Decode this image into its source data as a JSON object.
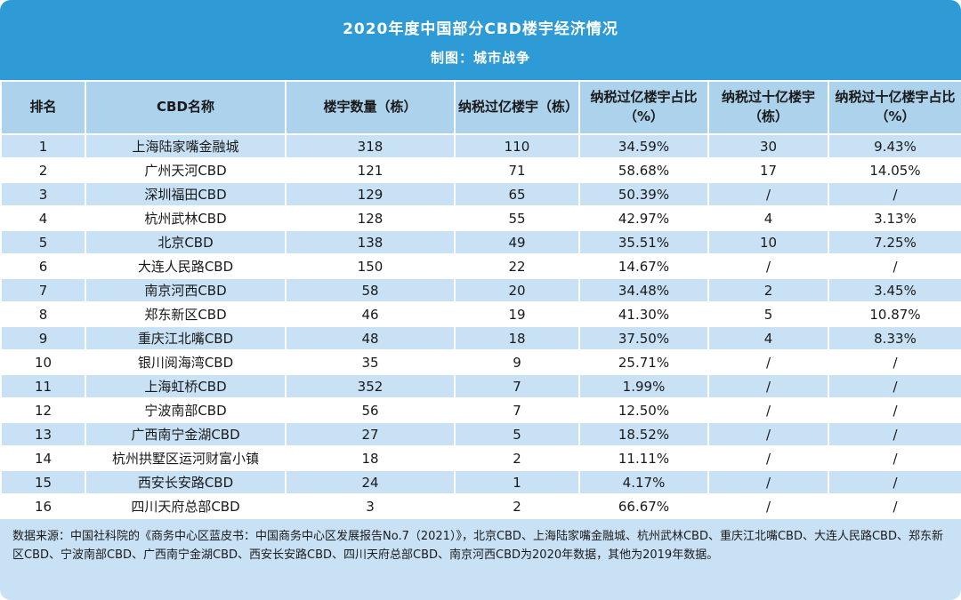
{
  "header": {
    "title": "2020年度中国部分CBD楼宇经济情况",
    "subtitle": "制图：城市战争"
  },
  "chart_data": {
    "type": "table",
    "title": "2020年度中国部分CBD楼宇经济情况",
    "subtitle": "制图：城市战争",
    "columns": [
      "排名",
      "CBD名称",
      "楼宇数量（栋）",
      "纳税过亿楼宇（栋）",
      "纳税过亿楼宇占比（%）",
      "纳税过十亿楼宇（栋）",
      "纳税过十亿楼宇占比（%）"
    ],
    "rows": [
      [
        "1",
        "上海陆家嘴金融城",
        "318",
        "110",
        "34.59%",
        "30",
        "9.43%"
      ],
      [
        "2",
        "广州天河CBD",
        "121",
        "71",
        "58.68%",
        "17",
        "14.05%"
      ],
      [
        "3",
        "深圳福田CBD",
        "129",
        "65",
        "50.39%",
        "/",
        "/"
      ],
      [
        "4",
        "杭州武林CBD",
        "128",
        "55",
        "42.97%",
        "4",
        "3.13%"
      ],
      [
        "5",
        "北京CBD",
        "138",
        "49",
        "35.51%",
        "10",
        "7.25%"
      ],
      [
        "6",
        "大连人民路CBD",
        "150",
        "22",
        "14.67%",
        "/",
        "/"
      ],
      [
        "7",
        "南京河西CBD",
        "58",
        "20",
        "34.48%",
        "2",
        "3.45%"
      ],
      [
        "8",
        "郑东新区CBD",
        "46",
        "19",
        "41.30%",
        "5",
        "10.87%"
      ],
      [
        "9",
        "重庆江北嘴CBD",
        "48",
        "18",
        "37.50%",
        "4",
        "8.33%"
      ],
      [
        "10",
        "银川阅海湾CBD",
        "35",
        "9",
        "25.71%",
        "/",
        "/"
      ],
      [
        "11",
        "上海虹桥CBD",
        "352",
        "7",
        "1.99%",
        "/",
        "/"
      ],
      [
        "12",
        "宁波南部CBD",
        "56",
        "7",
        "12.50%",
        "/",
        "/"
      ],
      [
        "13",
        "广西南宁金湖CBD",
        "27",
        "5",
        "18.52%",
        "/",
        "/"
      ],
      [
        "14",
        "杭州拱墅区运河财富小镇",
        "18",
        "2",
        "11.11%",
        "/",
        "/"
      ],
      [
        "15",
        "西安长安路CBD",
        "24",
        "1",
        "4.17%",
        "/",
        "/"
      ],
      [
        "16",
        "四川天府总部CBD",
        "3",
        "2",
        "66.67%",
        "/",
        "/"
      ]
    ],
    "source_note": "数据来源：中国社科院的《商务中心区蓝皮书：中国商务中心区发展报告No.7（2021）》，北京CBD、上海陆家嘴金融城、杭州武林CBD、重庆江北嘴CBD、大连人民路CBD、郑东新区CBD、宁波南部CBD、广西南宁金湖CBD、西安长安路CBD、四川天府总部CBD、南京河西CBD为2020年数据，其他为2019年数据。"
  },
  "footer": {
    "note": "数据来源：中国社科院的《商务中心区蓝皮书：中国商务中心区发展报告No.7（2021）》，北京CBD、上海陆家嘴金融城、杭州武林CBD、重庆江北嘴CBD、大连人民路CBD、郑东新区CBD、宁波南部CBD、广西南宁金湖CBD、西安长安路CBD、四川天府总部CBD、南京河西CBD为2020年数据，其他为2019年数据。"
  },
  "colors": {
    "title_bar": "#2E9BD6",
    "header_row": "#ACD2EC",
    "banded_row": "#C9E1F4",
    "plain_row": "#FFFFFF",
    "title_text": "#FFFFFF",
    "body_text": "#1A1A1A"
  }
}
